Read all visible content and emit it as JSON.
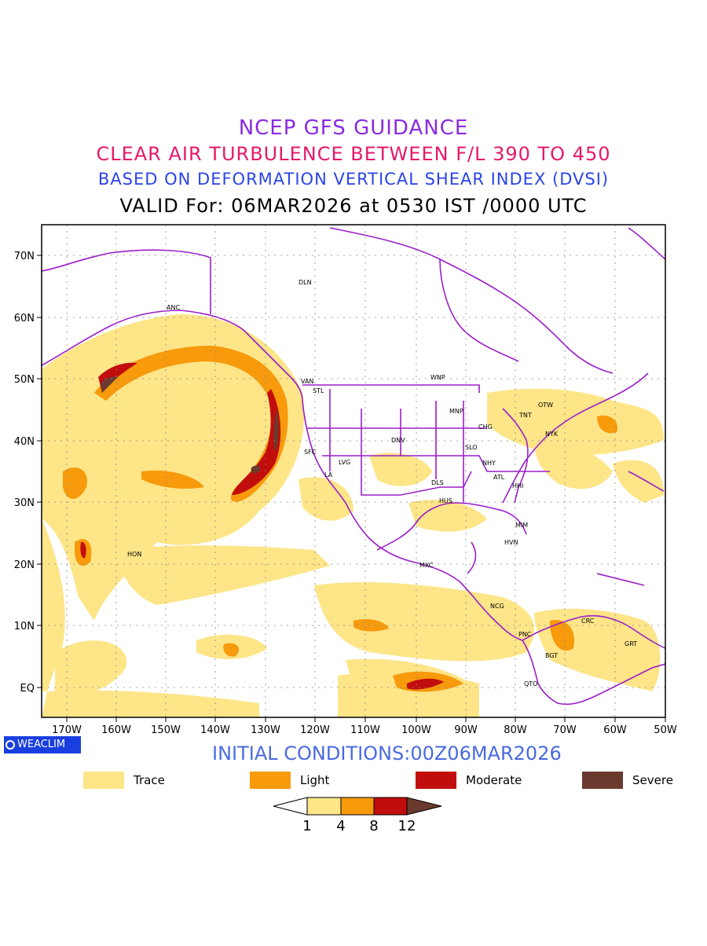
{
  "titles": {
    "line1": "NCEP GFS GUIDANCE",
    "line2": "CLEAR AIR TURBULENCE BETWEEN F/L 390 TO 450",
    "line3": "BASED ON DEFORMATION VERTICAL SHEAR INDEX (DVSI)",
    "line4": "VALID For: 06MAR2026 at 0530 IST /0000 UTC"
  },
  "colors": {
    "trace": "#fde588",
    "light": "#f79a0c",
    "moderate": "#c20d0d",
    "severe": "#6b3a2e",
    "coast": "#9b1fc9"
  },
  "axes": {
    "lat_labels": [
      "70N",
      "60N",
      "50N",
      "40N",
      "30N",
      "20N",
      "10N",
      "EQ"
    ],
    "lon_labels": [
      "170W",
      "160W",
      "150W",
      "140W",
      "130W",
      "120W",
      "110W",
      "100W",
      "90W",
      "80W",
      "70W",
      "60W",
      "50W"
    ]
  },
  "stations": [
    "ANC",
    "DLN",
    "VAN",
    "STL",
    "WNP",
    "OTW",
    "TNT",
    "NYK",
    "MNP",
    "CHG",
    "SLO",
    "NHY",
    "ATL",
    "HHI",
    "DNV",
    "SFC",
    "LVG",
    "LA",
    "DLS",
    "HUS",
    "MIM",
    "HVN",
    "HON",
    "MXC",
    "NCG",
    "PNC",
    "CRC",
    "BGT",
    "GRT",
    "QTO"
  ],
  "logo": "WEACLIM",
  "initial_conditions": "INITIAL CONDITIONS:00Z06MAR2026",
  "legend": [
    {
      "label": "Trace",
      "color": "#fde588"
    },
    {
      "label": "Light",
      "color": "#f79a0c"
    },
    {
      "label": "Moderate",
      "color": "#c20d0d"
    },
    {
      "label": "Severe",
      "color": "#6b3a2e"
    }
  ],
  "colorbar": {
    "ticks": [
      "1",
      "4",
      "8",
      "12"
    ]
  }
}
